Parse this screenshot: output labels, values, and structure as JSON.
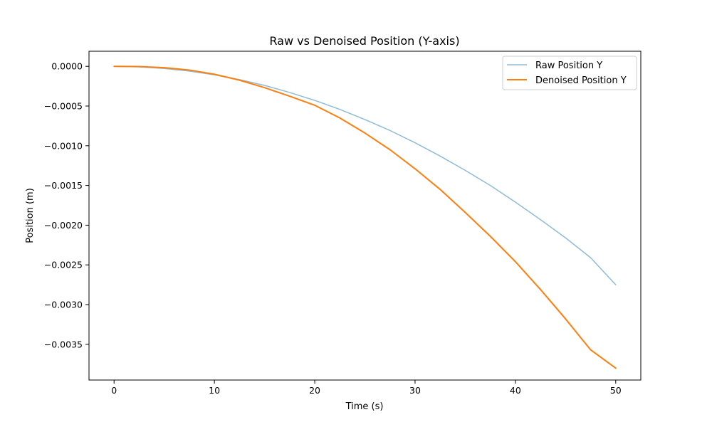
{
  "chart_data": {
    "type": "line",
    "title": "Raw vs Denoised Position (Y-axis)",
    "xlabel": "Time (s)",
    "ylabel": "Position (m)",
    "xlim": [
      -2.5,
      52.5
    ],
    "ylim": [
      -0.00395,
      0.00019
    ],
    "xticks": [
      0,
      10,
      20,
      30,
      40,
      50
    ],
    "xtick_labels": [
      "0",
      "10",
      "20",
      "30",
      "40",
      "50"
    ],
    "yticks": [
      0.0,
      -0.0005,
      -0.001,
      -0.0015,
      -0.002,
      -0.0025,
      -0.003,
      -0.0035
    ],
    "ytick_labels": [
      "0.0000",
      "−0.0005",
      "−0.0010",
      "−0.0015",
      "−0.0020",
      "−0.0025",
      "−0.0030",
      "−0.0035"
    ],
    "grid": false,
    "legend": "top-right",
    "x": [
      0,
      2.5,
      5,
      7.5,
      10,
      12.5,
      15,
      17.5,
      20,
      22.5,
      25,
      27.5,
      30,
      32.5,
      35,
      37.5,
      40,
      42.5,
      45,
      47.5,
      50
    ],
    "series": [
      {
        "name": "Raw Position Y",
        "color": "#8fbbd9",
        "values": [
          0.0,
          -7e-06,
          -2.7e-05,
          -6e-05,
          -0.000107,
          -0.000167,
          -0.00024,
          -0.000329,
          -0.000429,
          -0.000542,
          -0.00067,
          -0.000808,
          -0.000962,
          -0.00113,
          -0.00131,
          -0.0015,
          -0.00171,
          -0.00193,
          -0.00216,
          -0.00241,
          -0.00275
        ]
      },
      {
        "name": "Denoised Position Y",
        "color": "#ff7f0e",
        "values": [
          0.0,
          -3e-06,
          -1.7e-05,
          -4.7e-05,
          -0.0001,
          -0.000174,
          -0.000269,
          -0.000376,
          -0.00049,
          -0.00065,
          -0.00084,
          -0.00105,
          -0.00129,
          -0.00155,
          -0.00184,
          -0.00214,
          -0.00246,
          -0.00281,
          -0.00318,
          -0.00357,
          -0.0038
        ]
      }
    ]
  }
}
